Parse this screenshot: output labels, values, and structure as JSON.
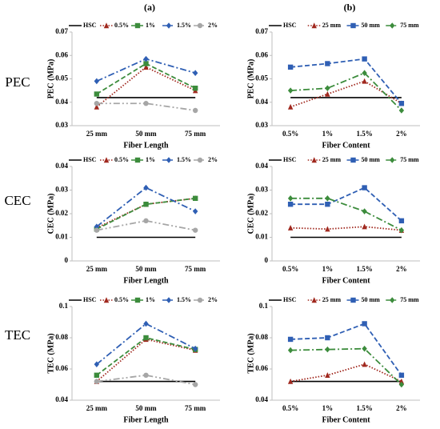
{
  "column_labels": [
    "(a)",
    "(b)"
  ],
  "row_labels": [
    "PEC",
    "CEC",
    "TEC"
  ],
  "chart_data": [
    {
      "type": "line",
      "ylabel": "PEC (MPa)",
      "xlabel": "Fiber Length",
      "categories": [
        "25 mm",
        "50 mm",
        "75 mm"
      ],
      "ylim": [
        0.03,
        0.07
      ],
      "yticks": [
        0.03,
        0.04,
        0.05,
        0.06,
        0.07
      ],
      "series": [
        {
          "name": "HSC",
          "color": "#000000",
          "dash": "solid",
          "marker": "none",
          "values": [
            0.042,
            0.042,
            0.042
          ]
        },
        {
          "name": "0.5%",
          "color": "#a0281e",
          "dash": "dotted",
          "marker": "triangle",
          "values": [
            0.038,
            0.055,
            0.045
          ]
        },
        {
          "name": "1%",
          "color": "#3c8c3c",
          "dash": "dashed",
          "marker": "square",
          "values": [
            0.0435,
            0.0565,
            0.046
          ]
        },
        {
          "name": "1.5%",
          "color": "#2f5fb4",
          "dash": "dashdot",
          "marker": "diamond",
          "values": [
            0.049,
            0.0585,
            0.0525
          ]
        },
        {
          "name": "2%",
          "color": "#a6a6a6",
          "dash": "dashdotdot",
          "marker": "circle",
          "values": [
            0.0395,
            0.0395,
            0.0365
          ]
        }
      ]
    },
    {
      "type": "line",
      "ylabel": "PEC (MPa)",
      "xlabel": "Fiber Content",
      "categories": [
        "0.5%",
        "1%",
        "1.5%",
        "2%"
      ],
      "ylim": [
        0.03,
        0.07
      ],
      "yticks": [
        0.03,
        0.04,
        0.05,
        0.06,
        0.07
      ],
      "series": [
        {
          "name": "HSC",
          "color": "#000000",
          "dash": "solid",
          "marker": "none",
          "values": [
            0.042,
            0.042,
            0.042,
            0.042
          ]
        },
        {
          "name": "25 mm",
          "color": "#a0281e",
          "dash": "dotted",
          "marker": "triangle",
          "values": [
            0.038,
            0.0435,
            0.049,
            0.0395
          ]
        },
        {
          "name": "50 mm",
          "color": "#2f5fb4",
          "dash": "dashed",
          "marker": "square",
          "values": [
            0.055,
            0.0565,
            0.0585,
            0.0395
          ]
        },
        {
          "name": "75 mm",
          "color": "#3c8c3c",
          "dash": "dashdot",
          "marker": "diamond",
          "values": [
            0.045,
            0.046,
            0.0525,
            0.0365
          ]
        }
      ]
    },
    {
      "type": "line",
      "ylabel": "CEC (MPa)",
      "xlabel": "Fiber Length",
      "categories": [
        "25 mm",
        "50 mm",
        "75 mm"
      ],
      "ylim": [
        0,
        0.04
      ],
      "yticks": [
        0,
        0.01,
        0.02,
        0.03,
        0.04
      ],
      "series": [
        {
          "name": "HSC",
          "color": "#000000",
          "dash": "solid",
          "marker": "none",
          "values": [
            0.01,
            0.01,
            0.01
          ]
        },
        {
          "name": "0.5%",
          "color": "#a0281e",
          "dash": "dotted",
          "marker": "triangle",
          "values": [
            0.014,
            0.024,
            0.0265
          ]
        },
        {
          "name": "1%",
          "color": "#3c8c3c",
          "dash": "dashed",
          "marker": "square",
          "values": [
            0.0135,
            0.024,
            0.0265
          ]
        },
        {
          "name": "1.5%",
          "color": "#2f5fb4",
          "dash": "dashdot",
          "marker": "diamond",
          "values": [
            0.0145,
            0.031,
            0.021
          ]
        },
        {
          "name": "2%",
          "color": "#a6a6a6",
          "dash": "dashdotdot",
          "marker": "circle",
          "values": [
            0.013,
            0.017,
            0.013
          ]
        }
      ]
    },
    {
      "type": "line",
      "ylabel": "CEC (MPa)",
      "xlabel": "Fiber Content",
      "categories": [
        "0.5%",
        "1%",
        "1.5%",
        "2%"
      ],
      "ylim": [
        0,
        0.04
      ],
      "yticks": [
        0,
        0.01,
        0.02,
        0.03,
        0.04
      ],
      "series": [
        {
          "name": "HSC",
          "color": "#000000",
          "dash": "solid",
          "marker": "none",
          "values": [
            0.01,
            0.01,
            0.01,
            0.01
          ]
        },
        {
          "name": "25 mm",
          "color": "#a0281e",
          "dash": "dotted",
          "marker": "triangle",
          "values": [
            0.014,
            0.0135,
            0.0145,
            0.013
          ]
        },
        {
          "name": "50 mm",
          "color": "#2f5fb4",
          "dash": "dashed",
          "marker": "square",
          "values": [
            0.024,
            0.024,
            0.031,
            0.017
          ]
        },
        {
          "name": "75 mm",
          "color": "#3c8c3c",
          "dash": "dashdot",
          "marker": "diamond",
          "values": [
            0.0265,
            0.0265,
            0.021,
            0.013
          ]
        }
      ]
    },
    {
      "type": "line",
      "ylabel": "TEC (MPa)",
      "xlabel": "Fiber Length",
      "categories": [
        "25 mm",
        "50 mm",
        "75 mm"
      ],
      "ylim": [
        0.04,
        0.1
      ],
      "yticks": [
        0.04,
        0.06,
        0.08,
        0.1
      ],
      "series": [
        {
          "name": "HSC",
          "color": "#000000",
          "dash": "solid",
          "marker": "none",
          "values": [
            0.052,
            0.052,
            0.052
          ]
        },
        {
          "name": "0.5%",
          "color": "#a0281e",
          "dash": "dotted",
          "marker": "triangle",
          "values": [
            0.052,
            0.079,
            0.072
          ]
        },
        {
          "name": "1%",
          "color": "#3c8c3c",
          "dash": "dashed",
          "marker": "square",
          "values": [
            0.056,
            0.08,
            0.0725
          ]
        },
        {
          "name": "1.5%",
          "color": "#2f5fb4",
          "dash": "dashdot",
          "marker": "diamond",
          "values": [
            0.063,
            0.089,
            0.073
          ]
        },
        {
          "name": "2%",
          "color": "#a6a6a6",
          "dash": "dashdotdot",
          "marker": "circle",
          "values": [
            0.052,
            0.056,
            0.05
          ]
        }
      ]
    },
    {
      "type": "line",
      "ylabel": "TEC (MPa)",
      "xlabel": "Fiber Content",
      "categories": [
        "0.5%",
        "1%",
        "1.5%",
        "2%"
      ],
      "ylim": [
        0.04,
        0.1
      ],
      "yticks": [
        0.04,
        0.06,
        0.08,
        0.1
      ],
      "series": [
        {
          "name": "HSC",
          "color": "#000000",
          "dash": "solid",
          "marker": "none",
          "values": [
            0.052,
            0.052,
            0.052,
            0.052
          ]
        },
        {
          "name": "25 mm",
          "color": "#a0281e",
          "dash": "dotted",
          "marker": "triangle",
          "values": [
            0.052,
            0.056,
            0.063,
            0.052
          ]
        },
        {
          "name": "50 mm",
          "color": "#2f5fb4",
          "dash": "dashed",
          "marker": "square",
          "values": [
            0.079,
            0.08,
            0.089,
            0.056
          ]
        },
        {
          "name": "75 mm",
          "color": "#3c8c3c",
          "dash": "dashdot",
          "marker": "diamond",
          "values": [
            0.072,
            0.0725,
            0.073,
            0.05
          ]
        }
      ]
    }
  ]
}
